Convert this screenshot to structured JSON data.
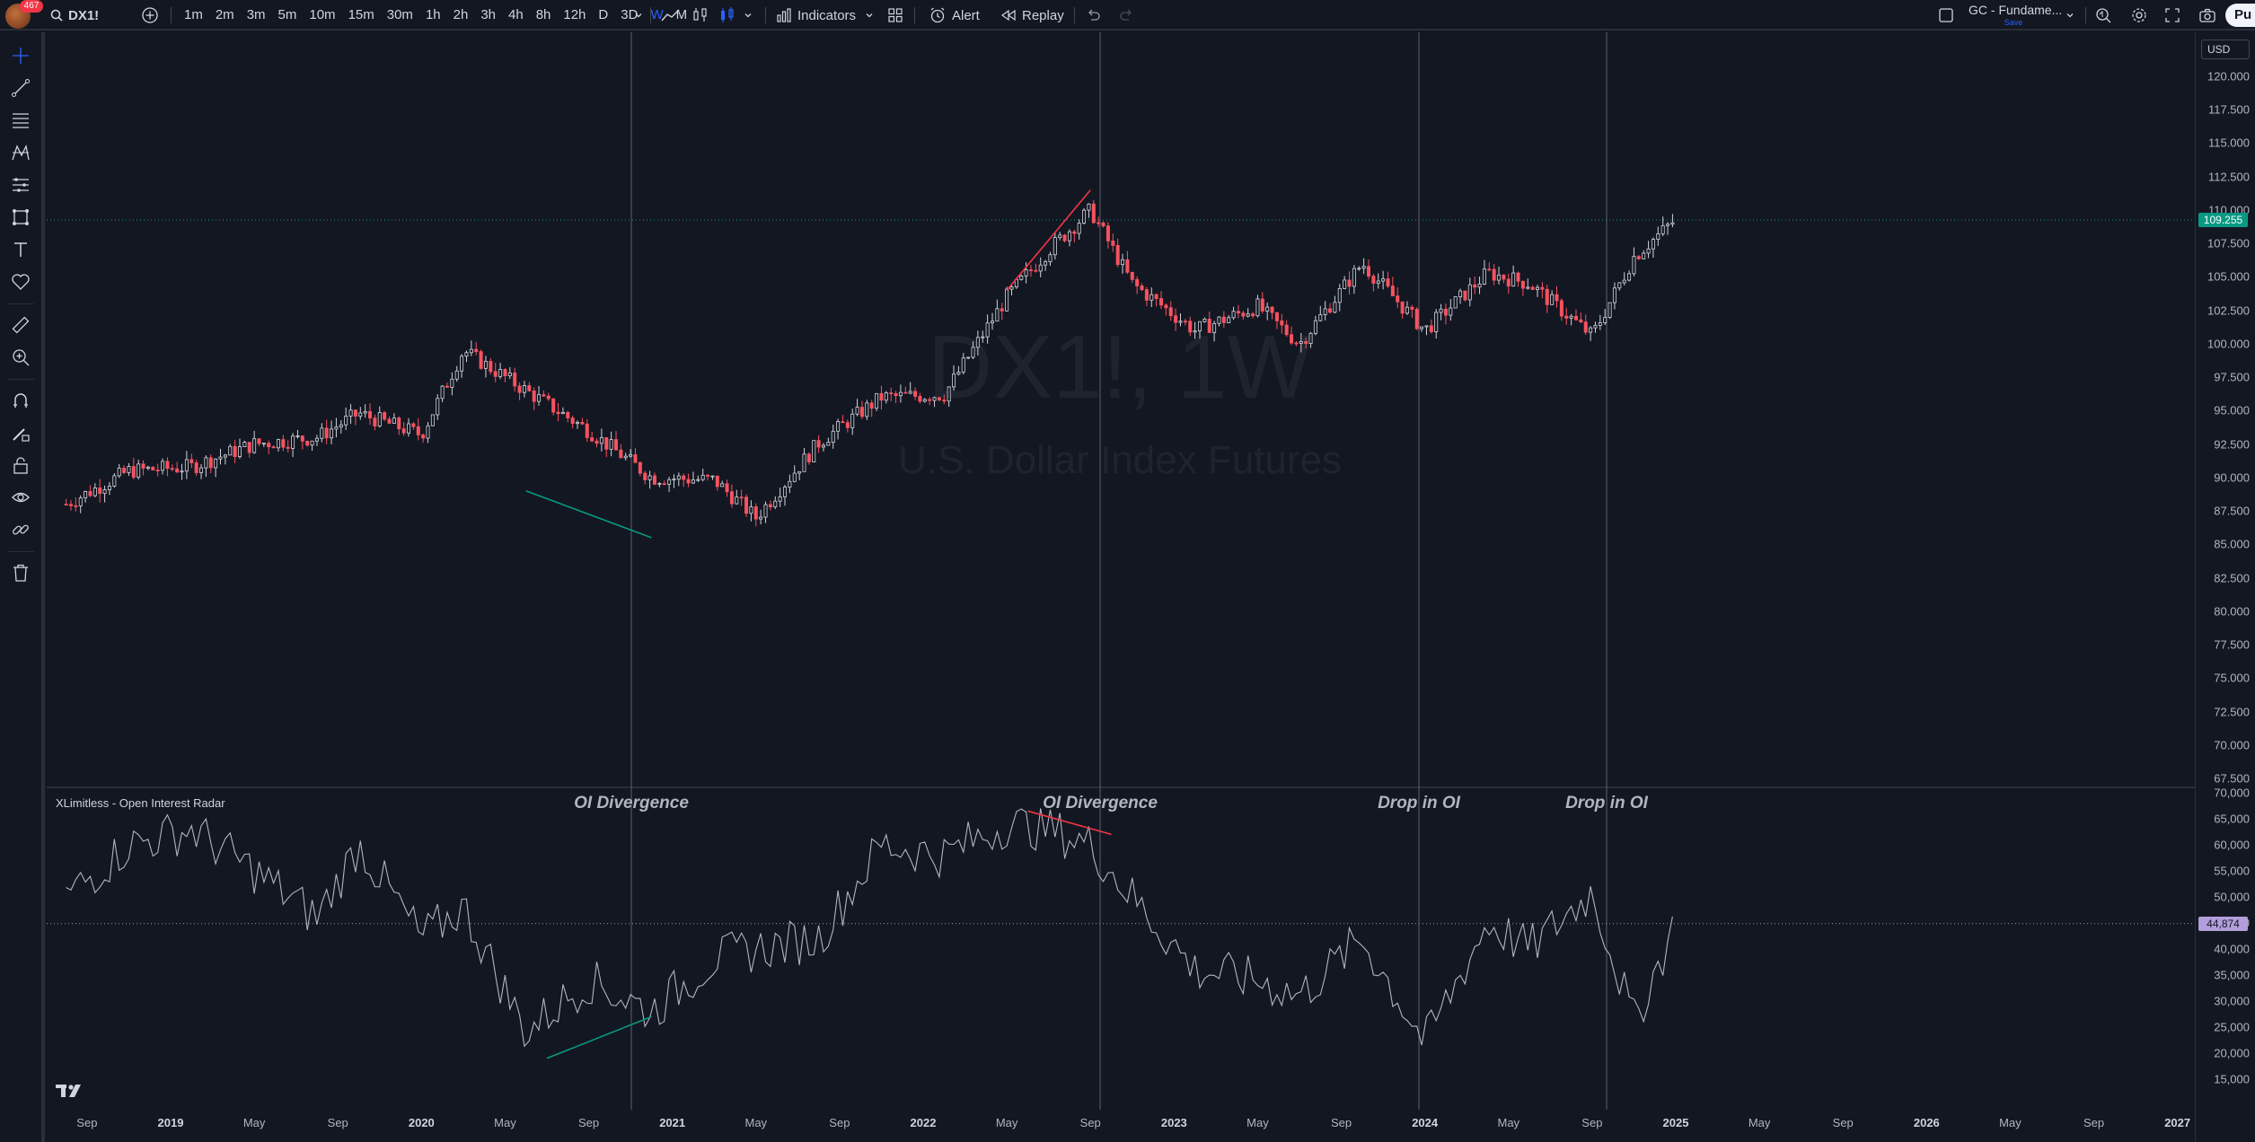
{
  "topbar": {
    "notification_count": "467",
    "symbol": "DX1!",
    "timeframes": [
      "1m",
      "2m",
      "3m",
      "5m",
      "10m",
      "15m",
      "30m",
      "1h",
      "2h",
      "3h",
      "4h",
      "8h",
      "12h",
      "D",
      "3D",
      "W",
      "M"
    ],
    "active_timeframe": "W",
    "indicators_label": "Indicators",
    "alert_label": "Alert",
    "replay_label": "Replay",
    "layout_name": "GC - Fundame...",
    "layout_status": "Save",
    "publish_label": "Pu"
  },
  "chart": {
    "watermark_symbol": "DX1!, 1W",
    "watermark_name": "U.S. Dollar Index Futures",
    "indicator_title": "XLimitless - Open Interest Radar",
    "currency": "USD",
    "annotations": [
      "OI Divergence",
      "OI Divergence",
      "Drop in OI",
      "Drop in OI"
    ],
    "price_axis": [
      "120.000",
      "117.500",
      "115.000",
      "112.500",
      "110.000",
      "107.500",
      "105.000",
      "102.500",
      "100.000",
      "97.500",
      "95.000",
      "92.500",
      "90.000",
      "87.500",
      "85.000",
      "82.500",
      "80.000",
      "77.500",
      "75.000",
      "72.500",
      "70.000",
      "67.500"
    ],
    "oi_axis": [
      "70,000",
      "65,000",
      "60,000",
      "55,000",
      "50,000",
      "45,000",
      "40,000",
      "35,000",
      "30,000",
      "25,000",
      "20,000",
      "15,000"
    ],
    "current_price": "109.255",
    "current_oi": "44,874",
    "time_axis": [
      "Sep",
      "2019",
      "May",
      "Sep",
      "2020",
      "May",
      "Sep",
      "2021",
      "May",
      "Sep",
      "2022",
      "May",
      "Sep",
      "2023",
      "May",
      "Sep",
      "2024",
      "May",
      "Sep",
      "2025",
      "May",
      "Sep",
      "2026",
      "May",
      "Sep",
      "2027"
    ],
    "colors": {
      "up": "#d1d4dc",
      "down": "#f7525f",
      "background": "#131722",
      "last_price": "#089981",
      "oi_tag": "#b39ddb",
      "green_line": "#089981",
      "red_line": "#f23645"
    }
  },
  "chart_data": [
    {
      "type": "line",
      "title": "DX1!, 1W",
      "subtitle": "U.S. Dollar Index Futures",
      "series": [
        {
          "name": "DX1!",
          "x": [
            "2018-08",
            "2018-11",
            "2019-02",
            "2019-05",
            "2019-08",
            "2019-10",
            "2020-01",
            "2020-03",
            "2020-06",
            "2020-09",
            "2020-12",
            "2021-03",
            "2021-05",
            "2021-08",
            "2021-11",
            "2022-02",
            "2022-05",
            "2022-07",
            "2022-09",
            "2022-11",
            "2023-02",
            "2023-05",
            "2023-07",
            "2023-10",
            "2024-01",
            "2024-04",
            "2024-06",
            "2024-09",
            "2024-11",
            "2025-01"
          ],
          "values": [
            88,
            90.5,
            90.8,
            92.5,
            93,
            94.8,
            93.2,
            99.5,
            96.5,
            93.5,
            90,
            89.8,
            87,
            92.6,
            96,
            96.2,
            103.5,
            107,
            110,
            104.5,
            101,
            102.8,
            100,
            106,
            101,
            105.3,
            104.5,
            100.6,
            106.5,
            109.3
          ]
        }
      ],
      "ylim": [
        67.5,
        120
      ]
    },
    {
      "type": "line",
      "title": "XLimitless - Open Interest Radar",
      "series": [
        {
          "name": "XLimitless - Open Interest Radar",
          "x": [
            "2018-08",
            "2018-11",
            "2019-02",
            "2019-05",
            "2019-08",
            "2019-10",
            "2020-01",
            "2020-03",
            "2020-06",
            "2020-09",
            "2020-12",
            "2021-03",
            "2021-05",
            "2021-08",
            "2021-11",
            "2022-02",
            "2022-05",
            "2022-07",
            "2022-09",
            "2022-11",
            "2023-02",
            "2023-05",
            "2023-07",
            "2023-10",
            "2024-01",
            "2024-04",
            "2024-06",
            "2024-09",
            "2024-11",
            "2025-01"
          ],
          "values": [
            50000,
            60000,
            63000,
            55000,
            46000,
            60000,
            42000,
            48000,
            24000,
            34000,
            28000,
            38000,
            40000,
            42000,
            60000,
            58000,
            64000,
            63000,
            60000,
            50000,
            36000,
            34000,
            31000,
            42000,
            22000,
            45000,
            40000,
            51000,
            26000,
            44874
          ]
        }
      ],
      "ylim": [
        15000,
        70000
      ]
    }
  ]
}
